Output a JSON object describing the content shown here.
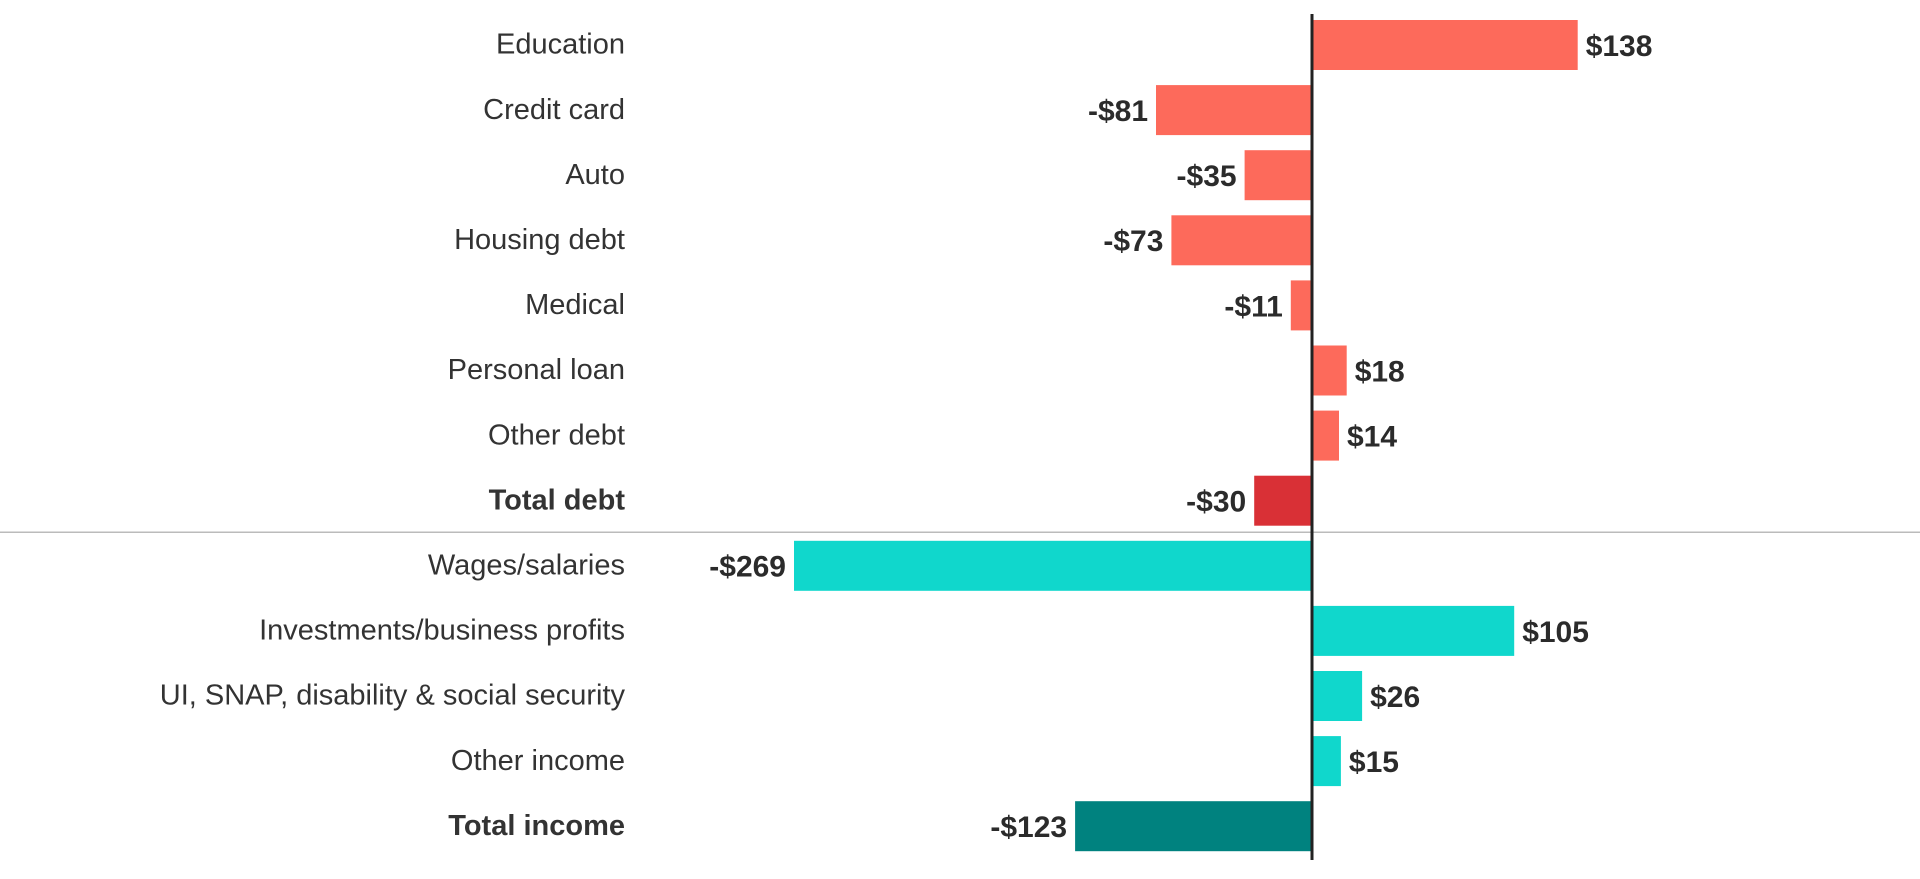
{
  "chart_data": {
    "type": "bar",
    "orientation": "horizontal",
    "title": "",
    "xlabel": "",
    "ylabel": "",
    "xlim": [
      -269,
      138
    ],
    "grid": false,
    "legend": "none",
    "colors": {
      "debt": "#fd6a5b",
      "total_debt": "#d93036",
      "total_debt_label": "#e8484a",
      "income": "#10d7cc",
      "total_income": "#00827f",
      "total_income_label": "#12a59e",
      "axis": "#222222",
      "separator": "#bbbbbb"
    },
    "groups": [
      {
        "name": "debt",
        "rows": [
          {
            "category": "Education",
            "value": 138,
            "label": "$138",
            "kind": "item"
          },
          {
            "category": "Credit card",
            "value": -81,
            "label": "-$81",
            "kind": "item"
          },
          {
            "category": "Auto",
            "value": -35,
            "label": "-$35",
            "kind": "item"
          },
          {
            "category": "Housing debt",
            "value": -73,
            "label": "-$73",
            "kind": "item"
          },
          {
            "category": "Medical",
            "value": -11,
            "label": "-$11",
            "kind": "item"
          },
          {
            "category": "Personal loan",
            "value": 18,
            "label": "$18",
            "kind": "item"
          },
          {
            "category": "Other debt",
            "value": 14,
            "label": "$14",
            "kind": "item"
          },
          {
            "category": "Total debt",
            "value": -30,
            "label": "-$30",
            "kind": "total"
          }
        ]
      },
      {
        "name": "income",
        "rows": [
          {
            "category": "Wages/salaries",
            "value": -269,
            "label": "-$269",
            "kind": "item"
          },
          {
            "category": "Investments/business profits",
            "value": 105,
            "label": "$105",
            "kind": "item"
          },
          {
            "category": "UI, SNAP, disability & social security",
            "value": 26,
            "label": "$26",
            "kind": "item"
          },
          {
            "category": "Other income",
            "value": 15,
            "label": "$15",
            "kind": "item"
          },
          {
            "category": "Total income",
            "value": -123,
            "label": "-$123",
            "kind": "total"
          }
        ]
      }
    ]
  }
}
